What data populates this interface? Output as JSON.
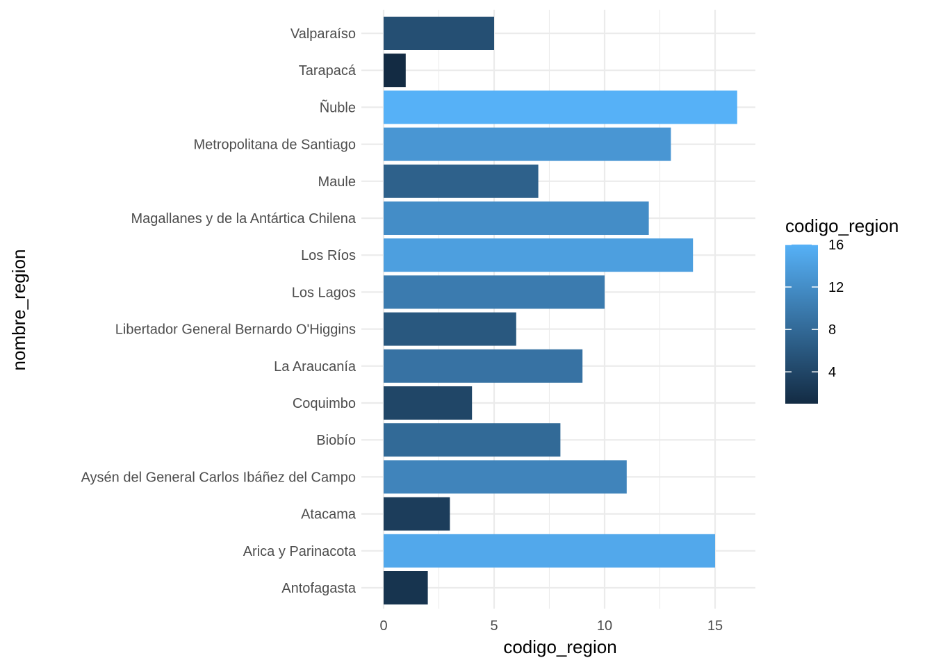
{
  "chart_data": {
    "type": "bar",
    "orientation": "horizontal",
    "xlabel": "codigo_region",
    "ylabel": "nombre_region",
    "xlim": [
      0,
      16
    ],
    "x_ticks": [
      0,
      5,
      10,
      15
    ],
    "grid": true,
    "categories": [
      "Antofagasta",
      "Arica y Parinacota",
      "Atacama",
      "Aysén del General Carlos Ibáñez del Campo",
      "Biobío",
      "Coquimbo",
      "La Araucanía",
      "Libertador General Bernardo O'Higgins",
      "Los Lagos",
      "Los Ríos",
      "Magallanes y de la Antártica Chilena",
      "Maule",
      "Metropolitana de Santiago",
      "Ñuble",
      "Tarapacá",
      "Valparaíso"
    ],
    "values": [
      2,
      15,
      3,
      11,
      8,
      4,
      9,
      6,
      10,
      14,
      12,
      7,
      13,
      16,
      1,
      5
    ],
    "legend": {
      "title": "codigo_region",
      "position": "right",
      "range": [
        1,
        16
      ],
      "ticks": [
        4,
        8,
        12,
        16
      ],
      "color_low": "#132B43",
      "color_high": "#56B1F7"
    }
  }
}
